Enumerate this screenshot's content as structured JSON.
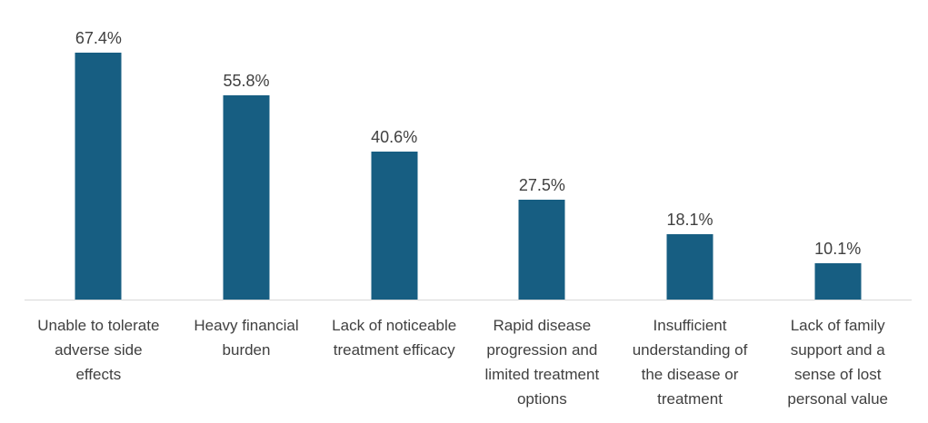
{
  "chart_data": {
    "type": "bar",
    "title": "",
    "xlabel": "",
    "ylabel": "",
    "categories": [
      "Unable to tolerate adverse side effects",
      "Heavy financial burden",
      "Lack of noticeable treatment efficacy",
      "Rapid disease progression and limited treatment options",
      "Insufficient understanding of the disease or treatment",
      "Lack of family support and a sense of lost personal value"
    ],
    "categories_wrapped": [
      [
        "Unable to tolerate",
        "adverse side",
        "effects"
      ],
      [
        "Heavy financial",
        "burden"
      ],
      [
        "Lack of noticeable",
        "treatment efficacy"
      ],
      [
        "Rapid disease",
        "progression and",
        "limited treatment",
        "options"
      ],
      [
        "Insufficient",
        "understanding of",
        "the disease or",
        "treatment"
      ],
      [
        "Lack of family",
        "support and a",
        "sense of lost",
        "personal value"
      ]
    ],
    "values": [
      67.4,
      55.8,
      40.6,
      27.5,
      18.1,
      10.1
    ],
    "value_labels": [
      "67.4%",
      "55.8%",
      "40.6%",
      "27.5%",
      "18.1%",
      "10.1%"
    ],
    "ylim": [
      0,
      70
    ],
    "grid": false,
    "legend": "none",
    "bar_color": "#175E82",
    "label_color": "#404040",
    "axis_line_color": "#D9D9D9",
    "background": "#FFFFFF"
  }
}
